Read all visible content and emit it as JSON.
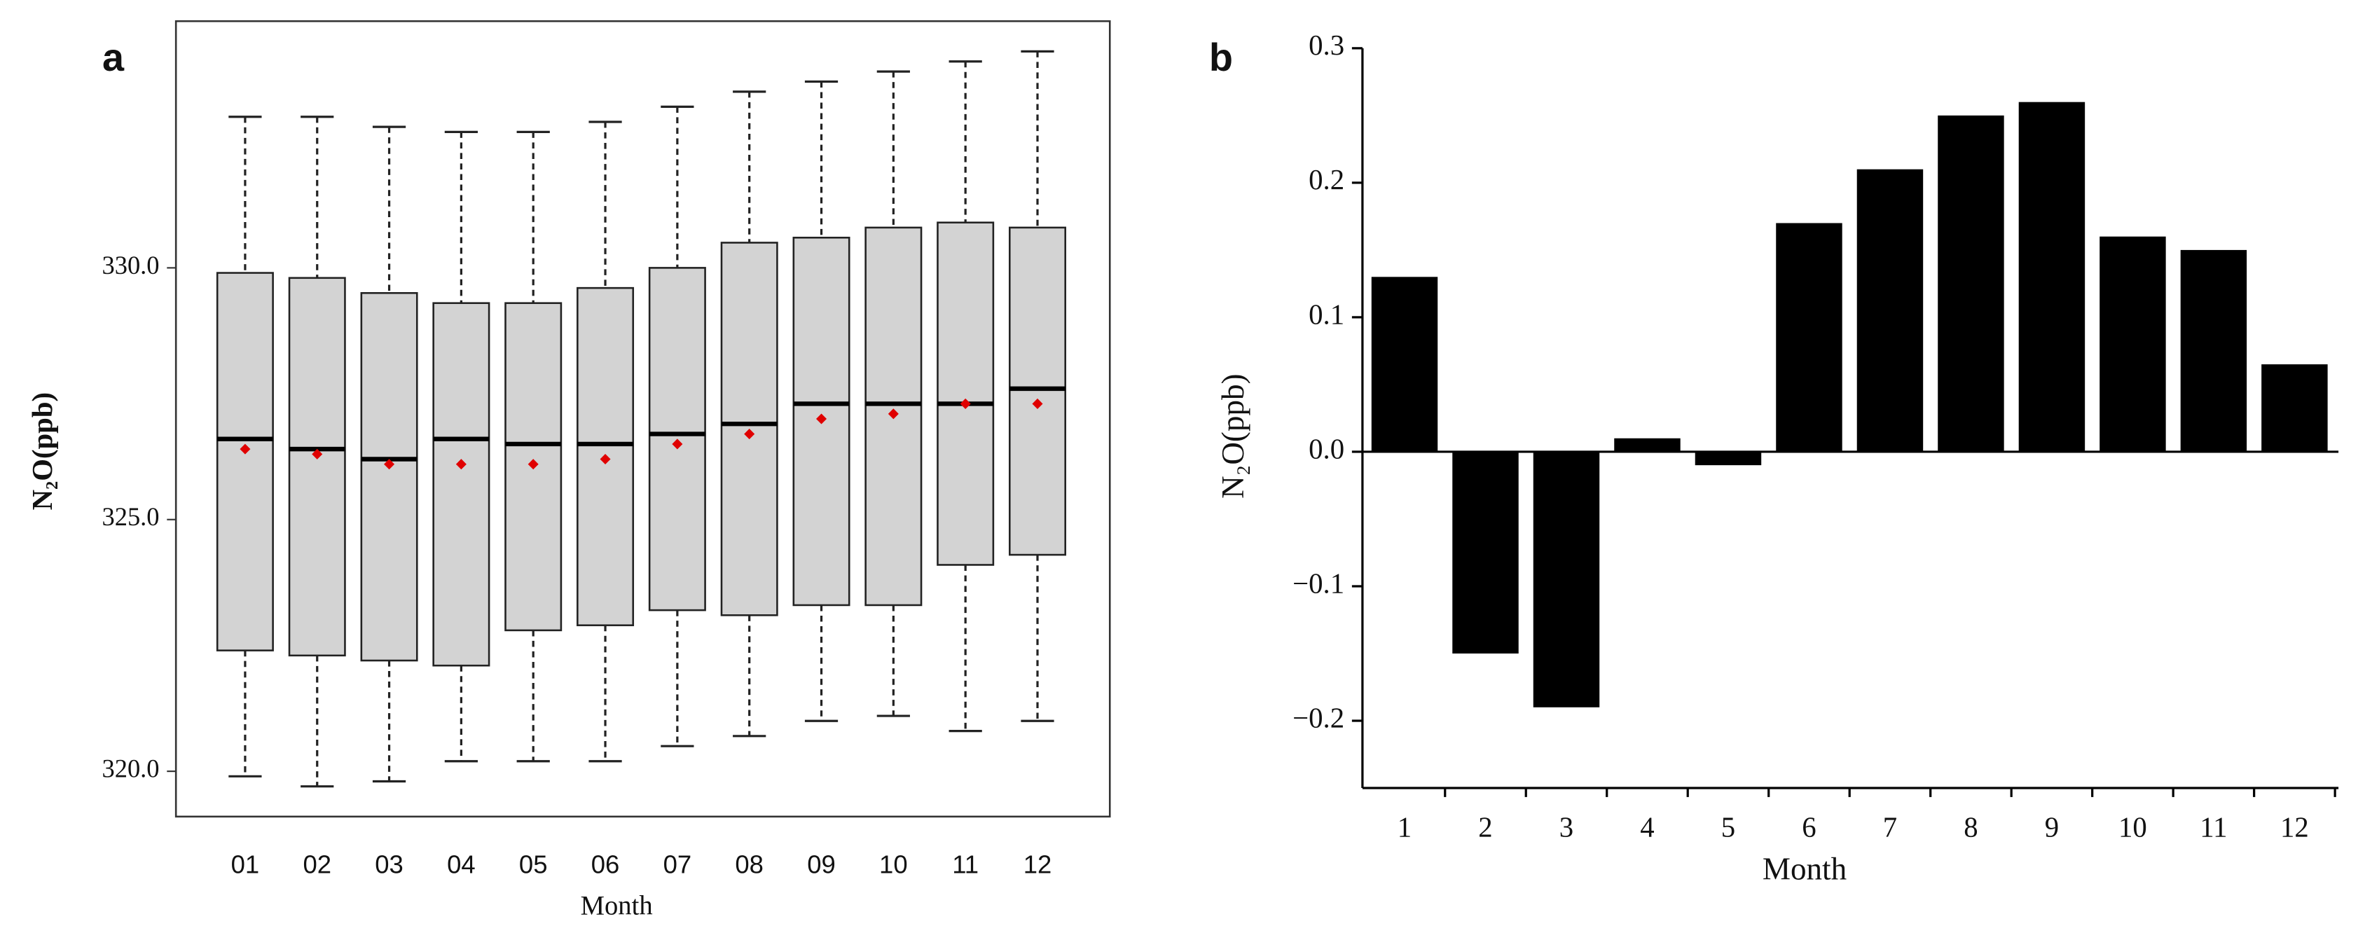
{
  "chart_data": [
    {
      "type": "box",
      "panel_label": "a",
      "x_label": "Month",
      "y_label": "N₂O(ppb)",
      "categories": [
        "01",
        "02",
        "03",
        "04",
        "05",
        "06",
        "07",
        "08",
        "09",
        "10",
        "11",
        "12"
      ],
      "min": [
        319.9,
        319.7,
        319.8,
        320.2,
        320.2,
        320.2,
        320.5,
        320.7,
        321.0,
        321.1,
        320.8,
        321.0
      ],
      "q1": [
        322.4,
        322.3,
        322.2,
        322.1,
        322.8,
        322.9,
        323.2,
        323.1,
        323.3,
        323.3,
        324.1,
        324.3
      ],
      "median": [
        326.6,
        326.4,
        326.2,
        326.6,
        326.5,
        326.5,
        326.7,
        326.9,
        327.3,
        327.3,
        327.3,
        327.6
      ],
      "q3": [
        329.9,
        329.8,
        329.5,
        329.3,
        329.3,
        329.6,
        330.0,
        330.5,
        330.6,
        330.8,
        330.9,
        330.8
      ],
      "max": [
        333.0,
        333.0,
        332.8,
        332.7,
        332.7,
        332.9,
        333.2,
        333.5,
        333.7,
        333.9,
        334.1,
        334.3
      ],
      "mean": [
        326.4,
        326.3,
        326.1,
        326.1,
        326.1,
        326.2,
        326.5,
        326.7,
        327.0,
        327.1,
        327.3,
        327.3
      ],
      "box_color": "#d3d3d3",
      "mean_color": "#e00000",
      "ylim": [
        319.1,
        334.9
      ],
      "yticks": [
        {
          "value": 320,
          "label": "320.0"
        },
        {
          "value": 325,
          "label": "325.0"
        },
        {
          "value": 330,
          "label": "330.0"
        }
      ]
    },
    {
      "type": "bar",
      "panel_label": "b",
      "x_label": "Month",
      "y_label": "N₂O(ppb)",
      "categories": [
        "1",
        "2",
        "3",
        "4",
        "5",
        "6",
        "7",
        "8",
        "9",
        "10",
        "11",
        "12"
      ],
      "values": [
        0.13,
        -0.15,
        -0.19,
        0.01,
        -0.01,
        0.17,
        0.21,
        0.25,
        0.26,
        0.16,
        0.15,
        0.065
      ],
      "color": "#000000",
      "ylim": [
        -0.25,
        0.3
      ],
      "yticks": [
        {
          "value": -0.2,
          "label": "−0.2"
        },
        {
          "value": -0.1,
          "label": "−0.1"
        },
        {
          "value": 0,
          "label": "0.0"
        },
        0.1,
        0.2,
        0.3
      ]
    }
  ]
}
